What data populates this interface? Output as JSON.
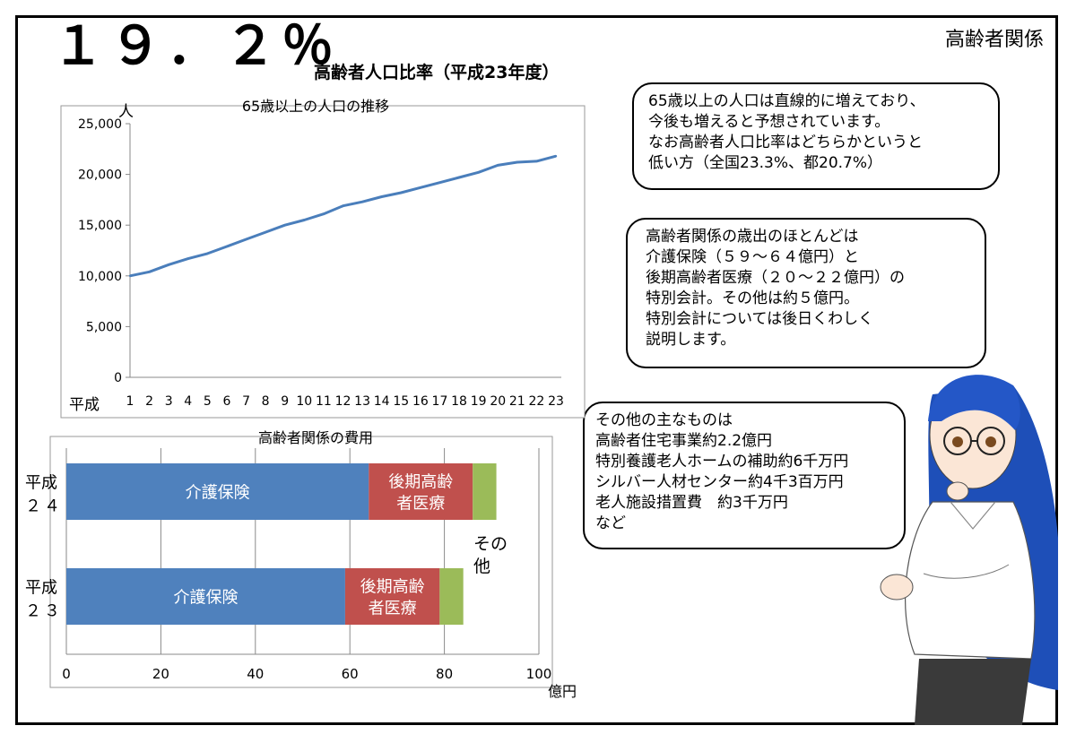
{
  "header": {
    "big_value": "１９．２％",
    "subtitle": "高齢者人口比率（平成23年度）",
    "corner_label": "高齢者関係"
  },
  "bubbles": {
    "b1": "65歳以上の人口は直線的に増えており、\n今後も増えると予想されています。\nなお高齢者人口比率はどちらかというと\n低い方（全国23.3%、都20.7%）",
    "b2": "高齢者関係の歳出のほとんどは\n介護保険（５９～６４億円）と\n後期高齢者医療（２０～２２億円）の\n特別会計。その他は約５億円。\n特別会計については後日くわしく\n説明します。",
    "b3": "その他の主なものは\n高齢者住宅事業約2.2億円\n特別養護老人ホームの補助約6千万円\nシルバー人材センター約4千3百万円\n老人施設措置費　約3千万円\nなど"
  },
  "chart_data": [
    {
      "type": "line",
      "title": "65歳以上の人口の推移",
      "ylabel": "人",
      "xlabel": "平成",
      "x": [
        1,
        2,
        3,
        4,
        5,
        6,
        7,
        8,
        9,
        10,
        11,
        12,
        13,
        14,
        15,
        16,
        17,
        18,
        19,
        20,
        21,
        22,
        23
      ],
      "x_labels": [
        "1",
        "2",
        "3",
        "4",
        "5",
        "6",
        "7",
        "8",
        "9",
        "10",
        "11",
        "12",
        "13",
        "14",
        "15",
        "16",
        "17",
        "18",
        "19",
        "20",
        "21",
        "22",
        "23"
      ],
      "series": [
        {
          "values": [
            10000,
            10400,
            11100,
            11700,
            12200,
            12900,
            13600,
            14300,
            15000,
            15500,
            16100,
            16900,
            17300,
            17800,
            18200,
            18700,
            19200,
            19700,
            20200,
            20900,
            21200,
            21300,
            21800
          ]
        }
      ],
      "ylim": [
        0,
        25000
      ],
      "yticks": [
        0,
        5000,
        10000,
        15000,
        20000,
        25000
      ],
      "ytick_labels": [
        "0",
        "5,000",
        "10,000",
        "15,000",
        "20,000",
        "25,000"
      ],
      "grid": false,
      "line_color": "#4a7ebb"
    },
    {
      "type": "bar",
      "orientation": "horizontal",
      "stacked": true,
      "title": "高齢者関係の費用",
      "xlabel": "億円",
      "categories": [
        {
          "line1": "平成",
          "line2": "２４"
        },
        {
          "line1": "平成",
          "line2": "２３"
        }
      ],
      "series": [
        {
          "name": "介護保険",
          "values": [
            64,
            59
          ],
          "color": "#4f81bd",
          "labels": [
            "介護保険",
            "介護保険"
          ]
        },
        {
          "name": "後期高齢者医療",
          "values": [
            22,
            20
          ],
          "color": "#c0504d",
          "labels": [
            "後期高齢\n者医療",
            "後期高齢\n者医療"
          ]
        },
        {
          "name": "その他",
          "values": [
            5,
            5
          ],
          "color": "#9bbb59",
          "labels": [
            "",
            ""
          ]
        }
      ],
      "other_annotation": "その\n他",
      "xlim": [
        0,
        100
      ],
      "xticks": [
        0,
        20,
        40,
        60,
        80,
        100
      ],
      "xtick_labels": [
        "0",
        "20",
        "40",
        "60",
        "80",
        "100"
      ],
      "grid": true
    }
  ]
}
